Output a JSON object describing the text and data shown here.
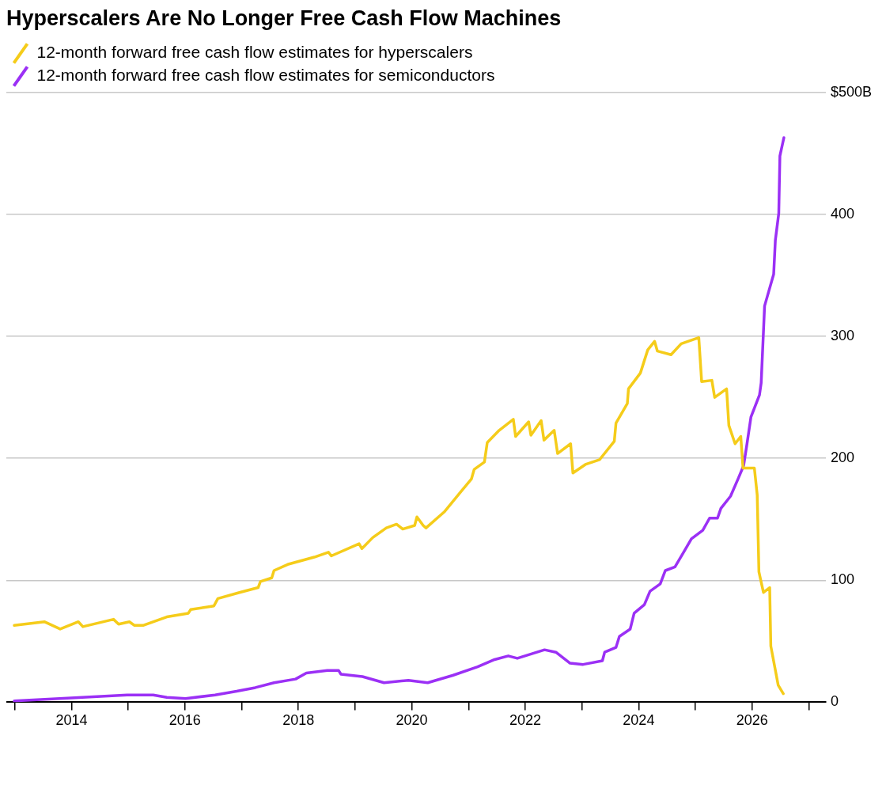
{
  "chart_data": {
    "type": "line",
    "title": "Hyperscalers Are No Longer Free Cash Flow Machines",
    "legend": "top left",
    "grid": "y",
    "marker": "none",
    "line_style": "solid",
    "xlim": [
      2012.85,
      2027.3
    ],
    "xticks": [
      {
        "value": 2013,
        "label": null
      },
      2014,
      {
        "value": 2015,
        "label": null
      },
      2016,
      {
        "value": 2017,
        "label": null
      },
      2018,
      {
        "value": 2019,
        "label": null
      },
      2020,
      {
        "value": 2021,
        "label": null
      },
      2022,
      {
        "value": 2023,
        "label": null
      },
      2024,
      {
        "value": 2025,
        "label": null
      },
      2026,
      {
        "value": 2027,
        "label": null
      }
    ],
    "ylim": [
      0,
      500
    ],
    "yticks": [
      0,
      100,
      200,
      300,
      400,
      {
        "value": 500,
        "label": "$500B"
      }
    ],
    "series": [
      {
        "name": "12-month forward free cash flow estimates for hyperscalers",
        "color": "#f5cc1a",
        "x": [
          2012.99,
          2013.52,
          2013.8,
          2014.12,
          2014.2,
          2014.74,
          2014.83,
          2015.02,
          2015.11,
          2015.26,
          2015.68,
          2016.06,
          2016.1,
          2016.51,
          2016.58,
          2016.96,
          2017.29,
          2017.33,
          2017.53,
          2017.57,
          2017.81,
          2018.28,
          2018.53,
          2018.58,
          2019.07,
          2019.12,
          2019.31,
          2019.55,
          2019.73,
          2019.84,
          2020.05,
          2020.09,
          2020.2,
          2020.25,
          2020.57,
          2020.87,
          2021.05,
          2021.1,
          2021.28,
          2021.33,
          2021.54,
          2021.79,
          2021.83,
          2022.06,
          2022.1,
          2022.28,
          2022.33,
          2022.51,
          2022.57,
          2022.8,
          2022.84,
          2023.06,
          2023.31,
          2023.57,
          2023.6,
          2023.8,
          2023.82,
          2024.03,
          2024.16,
          2024.28,
          2024.33,
          2024.57,
          2024.75,
          2025.06,
          2025.11,
          2025.29,
          2025.34,
          2025.55,
          2025.59,
          2025.7,
          2025.8,
          2025.84,
          2026.04,
          2026.09,
          2026.12,
          2026.2,
          2026.31,
          2026.33,
          2026.46,
          2026.55
        ],
        "values": [
          63,
          66,
          60,
          66,
          62,
          68,
          64,
          66,
          63,
          63,
          70,
          73,
          76,
          79,
          85,
          90,
          94,
          99,
          102,
          108,
          113,
          119,
          123,
          120,
          130,
          126,
          135,
          143,
          146,
          142,
          145,
          152,
          145,
          143,
          156,
          173,
          183,
          191,
          197,
          213,
          223,
          232,
          218,
          230,
          219,
          231,
          215,
          223,
          204,
          212,
          188,
          195,
          199,
          214,
          229,
          245,
          257,
          270,
          289,
          296,
          288,
          285,
          294,
          299,
          263,
          264,
          250,
          257,
          227,
          212,
          218,
          192,
          192,
          170,
          107,
          90,
          94,
          46,
          14,
          7
        ]
      },
      {
        "name": "12-month forward free cash flow estimates for semiconductors",
        "color": "#9b30f5",
        "x": [
          2012.99,
          2013.79,
          2014.98,
          2015.44,
          2015.68,
          2016.01,
          2016.53,
          2016.91,
          2017.24,
          2017.57,
          2017.95,
          2018.14,
          2018.51,
          2018.71,
          2018.75,
          2019.13,
          2019.51,
          2019.94,
          2020.28,
          2020.72,
          2021.16,
          2021.46,
          2021.7,
          2021.86,
          2022.34,
          2022.54,
          2022.79,
          2023.02,
          2023.36,
          2023.4,
          2023.6,
          2023.66,
          2023.85,
          2023.92,
          2024.1,
          2024.2,
          2024.38,
          2024.47,
          2024.64,
          2024.78,
          2024.93,
          2025.13,
          2025.25,
          2025.39,
          2025.45,
          2025.62,
          2025.76,
          2025.85,
          2025.91,
          2025.98,
          2026.13,
          2026.16,
          2026.22,
          2026.38,
          2026.41,
          2026.47,
          2026.49,
          2026.56
        ],
        "values": [
          1,
          3,
          6,
          6,
          4,
          3,
          6,
          9,
          12,
          16,
          19,
          24,
          26,
          26,
          23,
          21,
          16,
          18,
          16,
          22,
          29,
          35,
          38,
          36,
          43,
          41,
          32,
          31,
          34,
          41,
          45,
          54,
          60,
          73,
          80,
          91,
          97,
          108,
          111,
          122,
          134,
          141,
          151,
          151,
          159,
          169,
          184,
          194,
          212,
          234,
          252,
          262,
          325,
          351,
          379,
          401,
          448,
          463
        ]
      }
    ]
  }
}
